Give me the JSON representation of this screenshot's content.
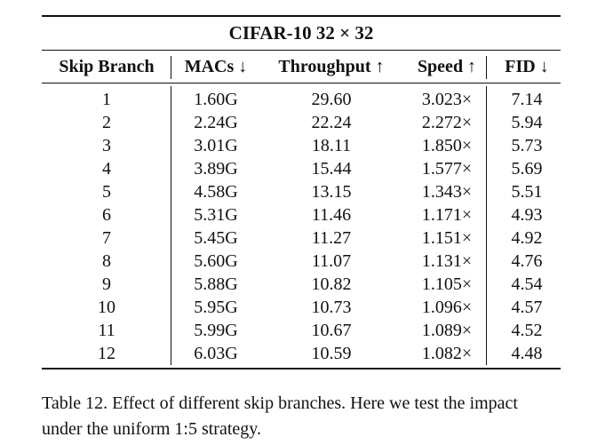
{
  "table": {
    "dataset_title": "CIFAR-10 32 × 32",
    "headers": [
      "Skip Branch",
      "MACs ↓",
      "Throughput ↑",
      "Speed ↑",
      "FID ↓"
    ],
    "rows": [
      [
        "1",
        "1.60G",
        "29.60",
        "3.023×",
        "7.14"
      ],
      [
        "2",
        "2.24G",
        "22.24",
        "2.272×",
        "5.94"
      ],
      [
        "3",
        "3.01G",
        "18.11",
        "1.850×",
        "5.73"
      ],
      [
        "4",
        "3.89G",
        "15.44",
        "1.577×",
        "5.69"
      ],
      [
        "5",
        "4.58G",
        "13.15",
        "1.343×",
        "5.51"
      ],
      [
        "6",
        "5.31G",
        "11.46",
        "1.171×",
        "4.93"
      ],
      [
        "7",
        "5.45G",
        "11.27",
        "1.151×",
        "4.92"
      ],
      [
        "8",
        "5.60G",
        "11.07",
        "1.131×",
        "4.76"
      ],
      [
        "9",
        "5.88G",
        "10.82",
        "1.105×",
        "4.54"
      ],
      [
        "10",
        "5.95G",
        "10.73",
        "1.096×",
        "4.57"
      ],
      [
        "11",
        "5.99G",
        "10.67",
        "1.089×",
        "4.52"
      ],
      [
        "12",
        "6.03G",
        "10.59",
        "1.082×",
        "4.48"
      ]
    ]
  },
  "caption": {
    "line1": "Table 12. Effect of different skip branches. Here we test the impact",
    "line2": "under the uniform 1:5 strategy."
  }
}
